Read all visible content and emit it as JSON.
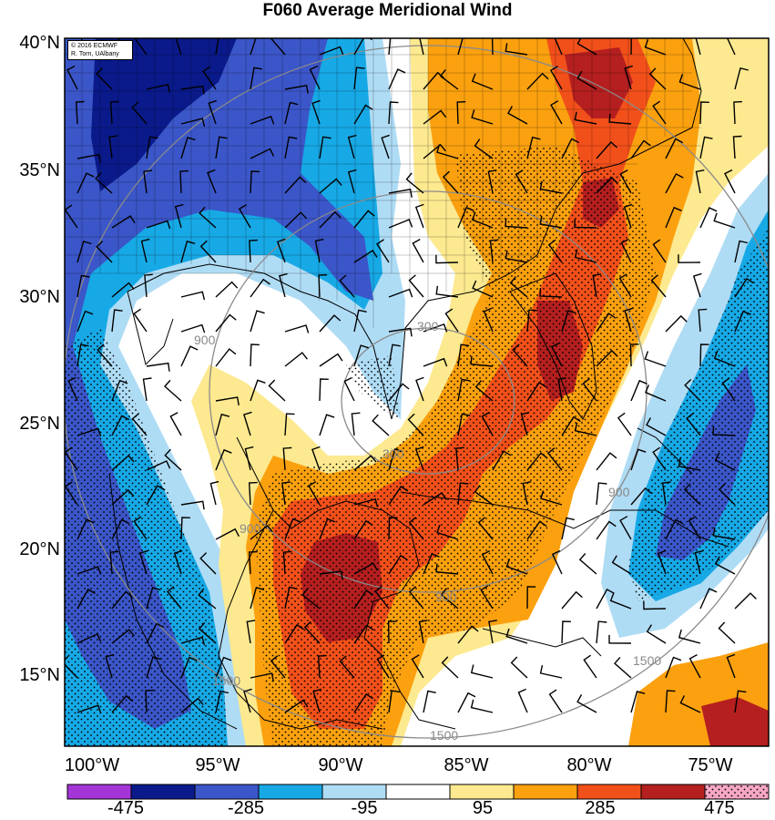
{
  "title": "F060 Average Meridional Wind",
  "credit": {
    "line1": "© 2016 ECMWF",
    "line2": "R. Torn, UAlbany"
  },
  "lat_labels": [
    "40°N",
    "35°N",
    "30°N",
    "25°N",
    "20°N",
    "15°N"
  ],
  "lon_labels": [
    "100°W",
    "95°W",
    "90°W",
    "85°W",
    "80°W",
    "75°W"
  ],
  "colorbar": {
    "colors": [
      "#a335d6",
      "#0a1a8a",
      "#3b56c8",
      "#17a9e6",
      "#afdcf5",
      "#ffffff",
      "#fde98f",
      "#fba10f",
      "#f2501a",
      "#b51f1f",
      "#f7a6c4"
    ],
    "labels": [
      "-475",
      "-285",
      "-95",
      "95",
      "285",
      "475"
    ]
  },
  "contour_labels": [
    "300",
    "300",
    "900",
    "900",
    "900",
    "900",
    "1500",
    "1500",
    "1500"
  ],
  "palette": {
    "land_outline": "#000000",
    "contour": "#8a8a8a",
    "barb": "#000000"
  }
}
